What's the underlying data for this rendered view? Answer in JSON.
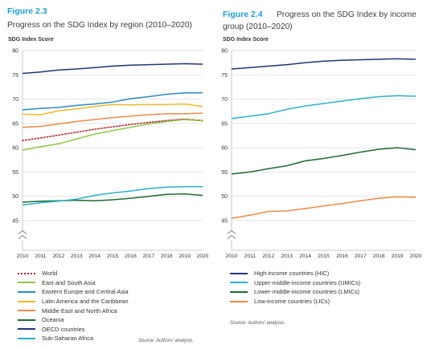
{
  "left": {
    "figure_number": "Figure 2.3",
    "title": "Progress on the SDG Index by region (2010–2020)",
    "source": "Source: Authors' analysis."
  },
  "right": {
    "figure_number": "Figure 2.4",
    "title_line1": "Progress on the SDG Index by income",
    "title_line2": "group (2010–2020)",
    "source": "Source: Authors' analysis."
  },
  "chart_data": [
    {
      "type": "line",
      "title": "Progress on the SDG Index by region (2010–2020)",
      "ylabel": "SDG Index Score",
      "xlabel": "",
      "x": [
        2010,
        2011,
        2012,
        2013,
        2014,
        2015,
        2016,
        2017,
        2018,
        2019,
        2020
      ],
      "ylim": [
        40,
        80
      ],
      "yticks": [
        45,
        50,
        55,
        60,
        65,
        70,
        75,
        80
      ],
      "broken_axis_below": 45,
      "grid": true,
      "legend_position": "bottom",
      "series": [
        {
          "name": "World",
          "color": "#b2202a",
          "dash": "dotted",
          "values": [
            61.5,
            62.0,
            62.6,
            63.2,
            63.8,
            64.3,
            64.8,
            65.2,
            65.6,
            65.9,
            65.6
          ]
        },
        {
          "name": "East and South Asia",
          "color": "#8cc640",
          "dash": "solid",
          "values": [
            59.5,
            60.2,
            60.8,
            61.8,
            62.8,
            63.5,
            64.2,
            64.9,
            65.4,
            65.8,
            65.5
          ]
        },
        {
          "name": "Eastern Europe and Central Asia",
          "color": "#2a8bc4",
          "dash": "solid",
          "values": [
            67.8,
            68.1,
            68.3,
            68.7,
            69.0,
            69.4,
            70.1,
            70.5,
            71.0,
            71.3,
            71.3
          ]
        },
        {
          "name": "Latin America and the Caribbean",
          "color": "#f5b824",
          "dash": "solid",
          "values": [
            66.9,
            66.8,
            67.6,
            68.0,
            68.5,
            68.9,
            68.8,
            68.9,
            68.9,
            69.0,
            68.5
          ]
        },
        {
          "name": "Middle East and North Africa",
          "color": "#f08a45",
          "dash": "solid",
          "values": [
            64.2,
            64.4,
            64.9,
            65.4,
            65.8,
            66.2,
            66.5,
            66.8,
            67.0,
            67.0,
            67.1
          ]
        },
        {
          "name": "Oceania",
          "color": "#1f6b35",
          "dash": "solid",
          "values": [
            48.8,
            49.0,
            49.1,
            49.2,
            49.1,
            49.3,
            49.6,
            50.0,
            50.4,
            50.5,
            50.2
          ]
        },
        {
          "name": "OECD countries",
          "color": "#1f3577",
          "dash": "solid",
          "values": [
            75.3,
            75.6,
            76.0,
            76.2,
            76.5,
            76.8,
            77.0,
            77.1,
            77.2,
            77.3,
            77.2
          ]
        },
        {
          "name": "Sub-Saharan Africa",
          "color": "#27b3c9",
          "dash": "solid",
          "values": [
            48.2,
            48.7,
            49.0,
            49.4,
            50.2,
            50.7,
            51.1,
            51.6,
            51.9,
            52.0,
            52.0
          ]
        }
      ]
    },
    {
      "type": "line",
      "title": "Progress on the SDG Index by income group (2010–2020)",
      "ylabel": "SDG Index Score",
      "xlabel": "",
      "x": [
        2010,
        2011,
        2012,
        2013,
        2014,
        2015,
        2016,
        2017,
        2018,
        2019,
        2020
      ],
      "ylim": [
        40,
        80
      ],
      "yticks": [
        45,
        50,
        55,
        60,
        65,
        70,
        75,
        80
      ],
      "broken_axis_below": 45,
      "grid": true,
      "legend_position": "bottom",
      "series": [
        {
          "name": "High-income countries (HIC)",
          "color": "#1f3577",
          "dash": "solid",
          "values": [
            76.2,
            76.5,
            76.8,
            77.1,
            77.5,
            77.8,
            78.0,
            78.1,
            78.2,
            78.3,
            78.2
          ]
        },
        {
          "name": "Upper-middle-income countries (UMICs)",
          "color": "#27b3c9",
          "dash": "solid",
          "values": [
            66.0,
            66.5,
            67.0,
            67.9,
            68.6,
            69.1,
            69.6,
            70.1,
            70.5,
            70.7,
            70.6
          ]
        },
        {
          "name": "Lower-middle-income countries (LMICs)",
          "color": "#1f6b35",
          "dash": "solid",
          "values": [
            54.6,
            55.0,
            55.7,
            56.3,
            57.3,
            57.8,
            58.4,
            59.1,
            59.7,
            60.0,
            59.6
          ]
        },
        {
          "name": "Low-income countries (LICs)",
          "color": "#f08a45",
          "dash": "solid",
          "values": [
            45.5,
            46.1,
            46.9,
            47.0,
            47.5,
            48.0,
            48.5,
            49.1,
            49.6,
            49.9,
            49.8
          ]
        }
      ]
    }
  ]
}
